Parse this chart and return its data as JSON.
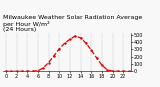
{
  "title": "Milwaukee Weather Solar Radiation Average\nper Hour W/m²\n(24 Hours)",
  "hours": [
    0,
    1,
    2,
    3,
    4,
    5,
    6,
    7,
    8,
    9,
    10,
    11,
    12,
    13,
    14,
    15,
    16,
    17,
    18,
    19,
    20,
    21,
    22,
    23
  ],
  "values": [
    0,
    0,
    0,
    0,
    0,
    2,
    8,
    45,
    120,
    210,
    305,
    380,
    435,
    480,
    455,
    385,
    290,
    185,
    85,
    20,
    3,
    0,
    0,
    0
  ],
  "line_color": "#dd0000",
  "bg_color": "#f8f8f8",
  "grid_color": "#999999",
  "text_color": "#000000",
  "ylim": [
    0,
    520
  ],
  "xlim": [
    -0.5,
    23.5
  ],
  "title_fontsize": 4.5,
  "tick_fontsize": 3.5,
  "line_width": 0.9,
  "yticks": [
    0,
    100,
    200,
    300,
    400,
    500
  ],
  "xticks": [
    0,
    2,
    4,
    6,
    8,
    10,
    12,
    14,
    16,
    18,
    20,
    22
  ]
}
